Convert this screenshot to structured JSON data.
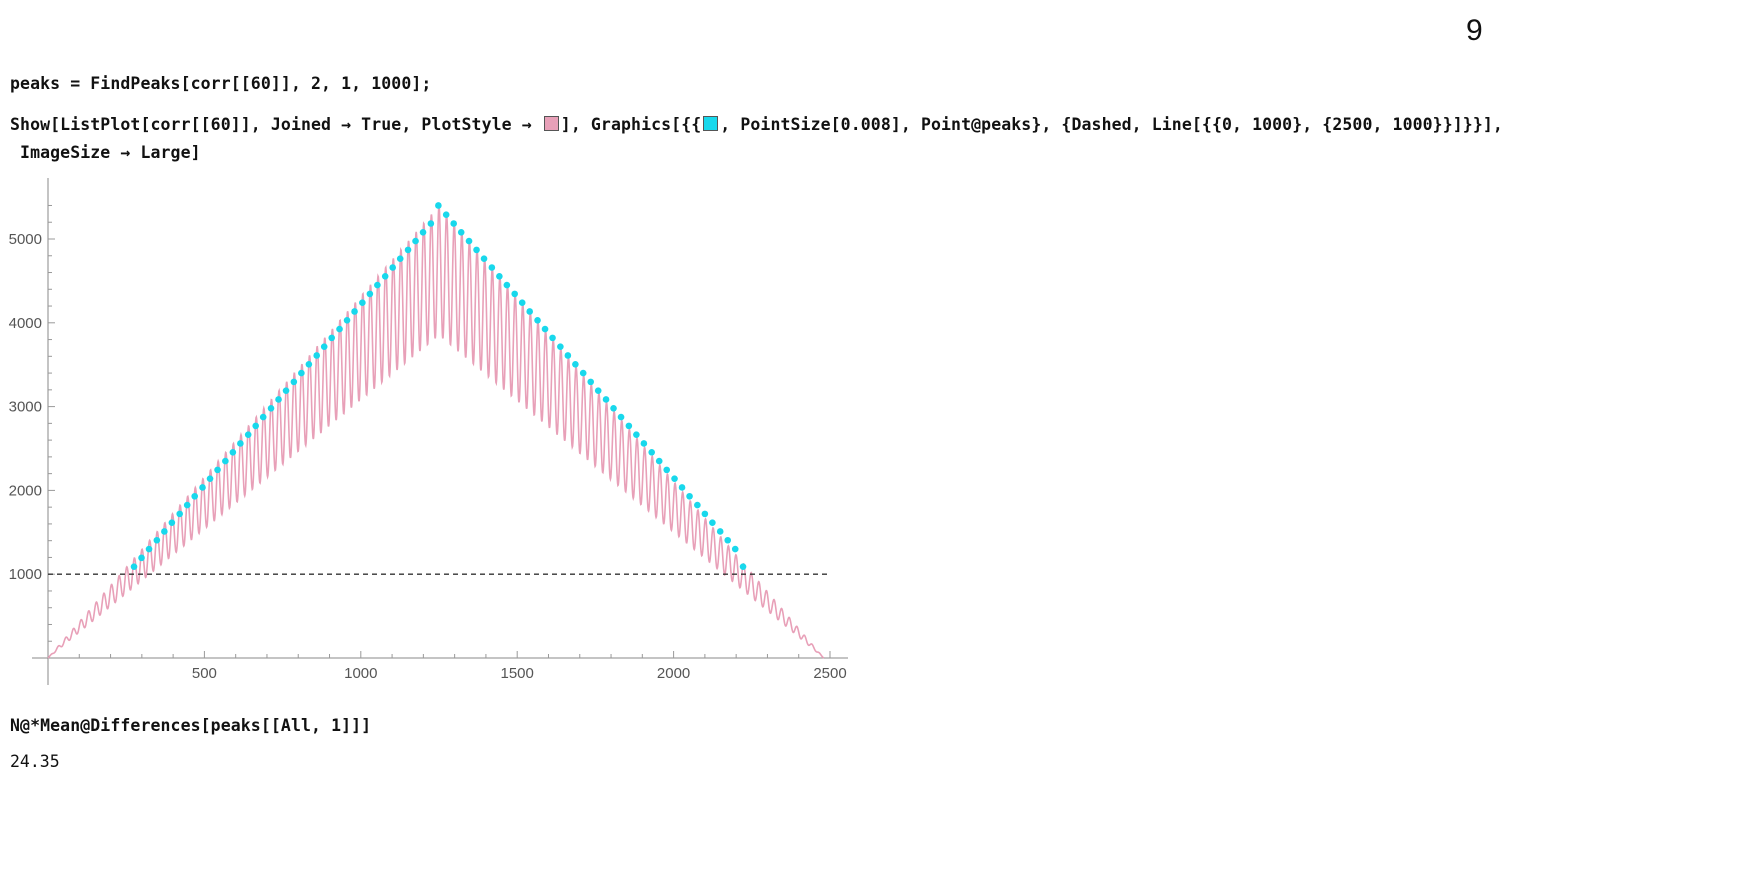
{
  "page_number": "9",
  "cell1": {
    "input": "peaks = FindPeaks[corr[[60]], 2, 1, 1000];"
  },
  "cell2": {
    "line1_a": "Show[ListPlot[corr[[60]], Joined → True, PlotStyle → ",
    "line1_b": "], Graphics[{{",
    "line1_c": ", PointSize[0.008], Point@peaks}, {Dashed, Line[{{0, 1000}, {2500, 1000}}]}}],",
    "line2": " ImageSize → Large]",
    "swatch_pink": "#e8a0b8",
    "swatch_cyan": "#18d8ec"
  },
  "cell3": {
    "input": "N@*Mean@Differences[peaks[[All, 1]]]",
    "output": "24.35"
  },
  "chart_data": {
    "type": "line",
    "title": "",
    "xlabel": "",
    "ylabel": "",
    "xlim": [
      0,
      2500
    ],
    "ylim": [
      0,
      5600
    ],
    "x_ticks": [
      500,
      1000,
      1500,
      2000,
      2500
    ],
    "y_ticks": [
      1000,
      2000,
      3000,
      4000,
      5000
    ],
    "x_tick_labels": [
      "500",
      "1000",
      "1500",
      "2000",
      "2500"
    ],
    "y_tick_labels": [
      "1000",
      "2000",
      "3000",
      "4000",
      "5000"
    ],
    "series": [
      {
        "color": "#e8a0b8",
        "style": "oscillating triangle",
        "x_start": 0,
        "x_apex": 1250,
        "x_end": 2480,
        "period": 24.35,
        "peak_envelope": [
          [
            0,
            0
          ],
          [
            1250,
            5400
          ],
          [
            2480,
            0
          ]
        ],
        "trough_envelope": [
          [
            0,
            0
          ],
          [
            1250,
            3850
          ],
          [
            2480,
            0
          ]
        ]
      }
    ],
    "peaks": {
      "color": "#18d8ec",
      "points": [
        [
          275,
          1090
        ],
        [
          299,
          1195
        ],
        [
          323,
          1300
        ],
        [
          348,
          1405
        ],
        [
          372,
          1510
        ],
        [
          396,
          1615
        ],
        [
          421,
          1720
        ],
        [
          445,
          1825
        ],
        [
          469,
          1930
        ],
        [
          494,
          2035
        ],
        [
          518,
          2140
        ],
        [
          542,
          2245
        ],
        [
          567,
          2350
        ],
        [
          591,
          2455
        ],
        [
          615,
          2560
        ],
        [
          640,
          2665
        ],
        [
          664,
          2770
        ],
        [
          688,
          2875
        ],
        [
          713,
          2980
        ],
        [
          737,
          3085
        ],
        [
          761,
          3190
        ],
        [
          786,
          3295
        ],
        [
          810,
          3400
        ],
        [
          834,
          3505
        ],
        [
          859,
          3610
        ],
        [
          883,
          3715
        ],
        [
          907,
          3820
        ],
        [
          932,
          3925
        ],
        [
          956,
          4030
        ],
        [
          980,
          4135
        ],
        [
          1005,
          4240
        ],
        [
          1029,
          4345
        ],
        [
          1053,
          4450
        ],
        [
          1078,
          4555
        ],
        [
          1102,
          4660
        ],
        [
          1126,
          4765
        ],
        [
          1151,
          4870
        ],
        [
          1175,
          4975
        ],
        [
          1199,
          5080
        ],
        [
          1224,
          5185
        ],
        [
          1248,
          5400
        ],
        [
          1273,
          5290
        ],
        [
          1297,
          5185
        ],
        [
          1321,
          5080
        ],
        [
          1346,
          4975
        ],
        [
          1370,
          4870
        ],
        [
          1394,
          4765
        ],
        [
          1419,
          4660
        ],
        [
          1443,
          4555
        ],
        [
          1467,
          4450
        ],
        [
          1492,
          4345
        ],
        [
          1516,
          4240
        ],
        [
          1540,
          4135
        ],
        [
          1565,
          4030
        ],
        [
          1589,
          3925
        ],
        [
          1613,
          3820
        ],
        [
          1638,
          3715
        ],
        [
          1662,
          3610
        ],
        [
          1686,
          3505
        ],
        [
          1711,
          3400
        ],
        [
          1735,
          3295
        ],
        [
          1759,
          3190
        ],
        [
          1784,
          3085
        ],
        [
          1808,
          2980
        ],
        [
          1832,
          2875
        ],
        [
          1857,
          2770
        ],
        [
          1881,
          2665
        ],
        [
          1905,
          2560
        ],
        [
          1930,
          2455
        ],
        [
          1954,
          2350
        ],
        [
          1978,
          2245
        ],
        [
          2003,
          2140
        ],
        [
          2027,
          2035
        ],
        [
          2051,
          1930
        ],
        [
          2076,
          1825
        ],
        [
          2100,
          1720
        ],
        [
          2124,
          1615
        ],
        [
          2149,
          1510
        ],
        [
          2173,
          1405
        ],
        [
          2197,
          1300
        ],
        [
          2222,
          1090
        ]
      ]
    },
    "threshold": {
      "from": [
        0,
        1000
      ],
      "to": [
        2500,
        1000
      ],
      "style": "dashed",
      "color": "#333333"
    }
  }
}
